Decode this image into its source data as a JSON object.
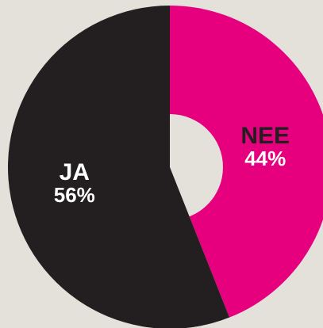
{
  "chart_data": {
    "type": "pie",
    "categories": [
      "NEE",
      "JA"
    ],
    "values": [
      44,
      56
    ],
    "value_labels": [
      "44%",
      "56%"
    ],
    "colors": [
      "#e6007e",
      "#231f20"
    ],
    "category_label_colors": [
      "#231f20",
      "#ffffff"
    ],
    "donut": true
  }
}
